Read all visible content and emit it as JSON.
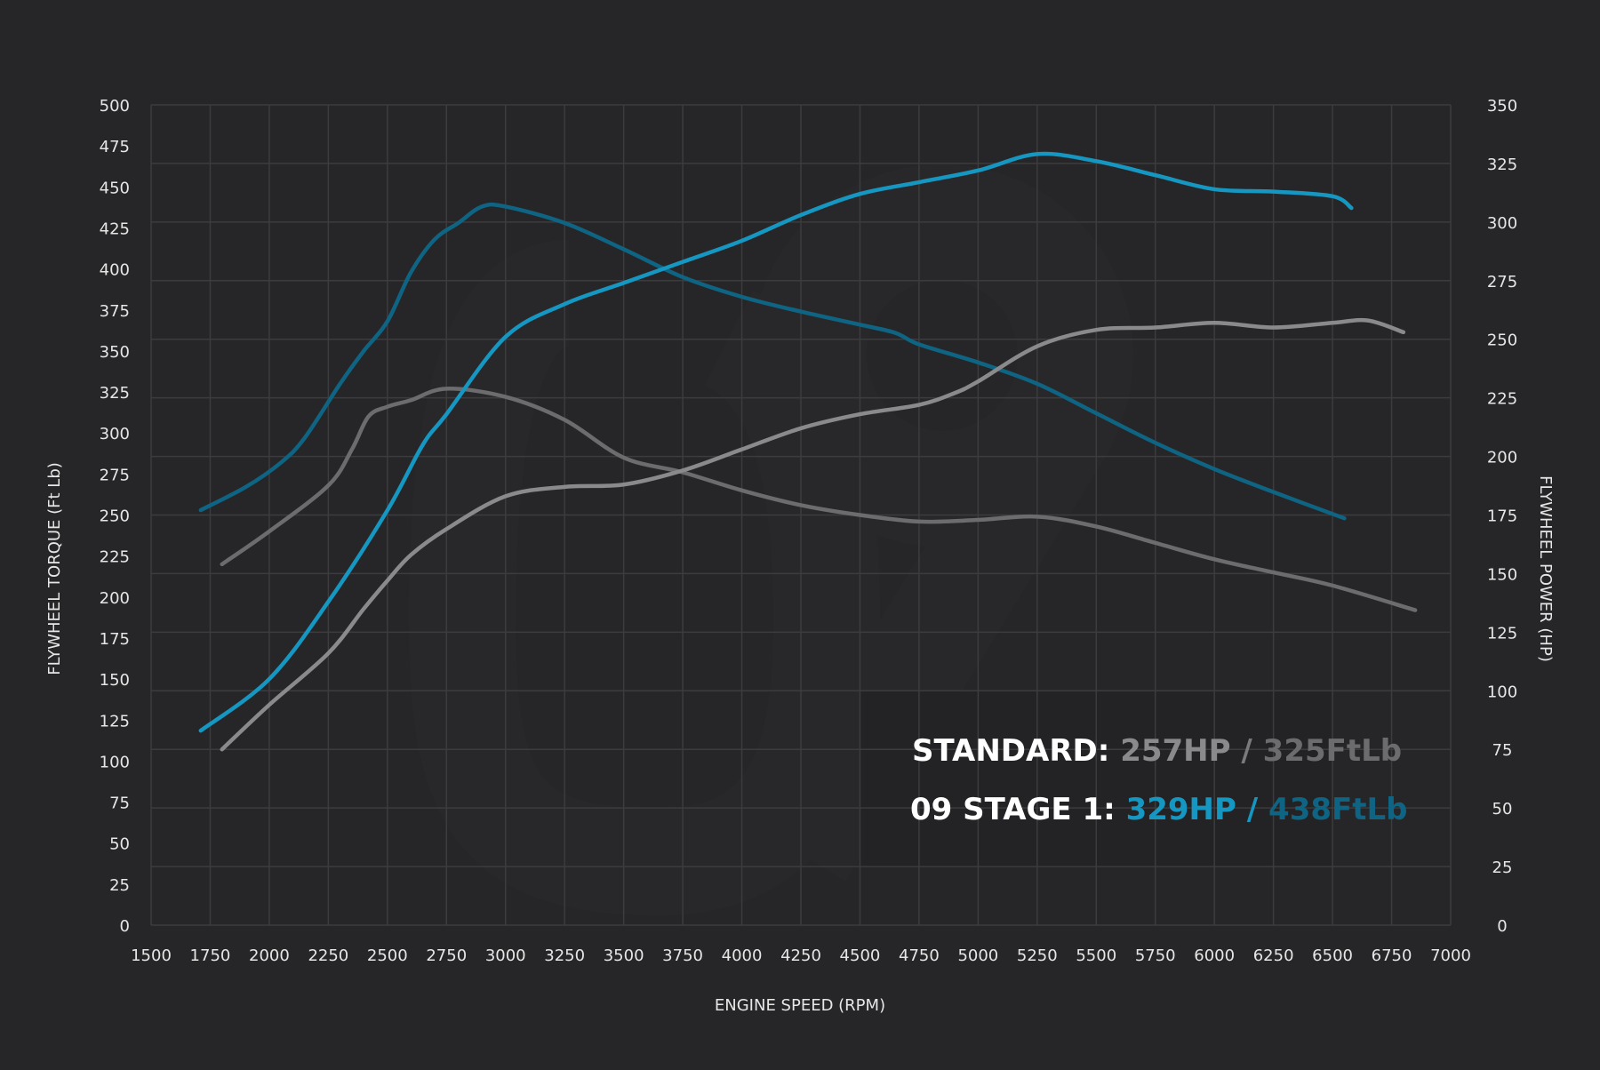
{
  "chart_data": {
    "type": "line",
    "xlabel": "ENGINE SPEED (RPM)",
    "ylabel_left": "FLYWHEEL TORQUE (Ft Lb)",
    "ylabel_right": "FLYWHEEL POWER (HP)",
    "xlim": [
      1500,
      7000
    ],
    "ylim_left": [
      0,
      500
    ],
    "ylim_right": [
      0,
      350
    ],
    "grid": true,
    "x_ticks": [
      1500,
      1750,
      2000,
      2250,
      2500,
      2750,
      3000,
      3250,
      3500,
      3750,
      4000,
      4250,
      4500,
      4750,
      5000,
      5250,
      5500,
      5750,
      6000,
      6250,
      6500,
      6750,
      7000
    ],
    "y_ticks_left": [
      0,
      25,
      50,
      75,
      100,
      125,
      150,
      175,
      200,
      225,
      250,
      275,
      300,
      325,
      350,
      375,
      400,
      425,
      450,
      475,
      500
    ],
    "y_ticks_right": [
      0,
      25,
      50,
      75,
      100,
      125,
      150,
      175,
      200,
      225,
      250,
      275,
      300,
      325,
      350
    ],
    "series": [
      {
        "axis": "left",
        "color": "#0e6482",
        "points": [
          [
            1710,
            253
          ],
          [
            1900,
            267
          ],
          [
            2050,
            282
          ],
          [
            2150,
            297
          ],
          [
            2300,
            330
          ],
          [
            2400,
            350
          ],
          [
            2500,
            368
          ],
          [
            2600,
            398
          ],
          [
            2700,
            418
          ],
          [
            2800,
            428
          ],
          [
            2900,
            438
          ],
          [
            3000,
            438
          ],
          [
            3250,
            428
          ],
          [
            3500,
            412
          ],
          [
            3750,
            395
          ],
          [
            4000,
            383
          ],
          [
            4250,
            374
          ],
          [
            4500,
            366
          ],
          [
            4650,
            361
          ],
          [
            4750,
            354
          ],
          [
            5000,
            343
          ],
          [
            5250,
            330
          ],
          [
            5500,
            312
          ],
          [
            5750,
            294
          ],
          [
            6000,
            278
          ],
          [
            6250,
            264
          ],
          [
            6550,
            248
          ]
        ]
      },
      {
        "axis": "left",
        "color": "#6c6c6e",
        "points": [
          [
            1800,
            220
          ],
          [
            2000,
            240
          ],
          [
            2250,
            268
          ],
          [
            2350,
            290
          ],
          [
            2420,
            310
          ],
          [
            2500,
            316
          ],
          [
            2600,
            320
          ],
          [
            2750,
            327
          ],
          [
            3000,
            322
          ],
          [
            3250,
            308
          ],
          [
            3500,
            285
          ],
          [
            3750,
            276
          ],
          [
            4000,
            265
          ],
          [
            4250,
            256
          ],
          [
            4500,
            250
          ],
          [
            4750,
            246
          ],
          [
            5000,
            247
          ],
          [
            5250,
            249
          ],
          [
            5500,
            243
          ],
          [
            5750,
            233
          ],
          [
            6000,
            223
          ],
          [
            6250,
            215
          ],
          [
            6500,
            207
          ],
          [
            6850,
            192
          ]
        ]
      },
      {
        "axis": "right",
        "color": "#1597c2",
        "points": [
          [
            1710,
            83
          ],
          [
            2000,
            105
          ],
          [
            2250,
            138
          ],
          [
            2500,
            177
          ],
          [
            2650,
            205
          ],
          [
            2750,
            218
          ],
          [
            3000,
            251
          ],
          [
            3250,
            265
          ],
          [
            3500,
            274
          ],
          [
            3750,
            283
          ],
          [
            4000,
            292
          ],
          [
            4250,
            303
          ],
          [
            4500,
            312
          ],
          [
            4750,
            317
          ],
          [
            5000,
            322
          ],
          [
            5250,
            329
          ],
          [
            5500,
            326
          ],
          [
            5750,
            320
          ],
          [
            6000,
            314
          ],
          [
            6250,
            313
          ],
          [
            6500,
            311
          ],
          [
            6580,
            306
          ]
        ]
      },
      {
        "axis": "right",
        "color": "#8a8a8c",
        "points": [
          [
            1800,
            75
          ],
          [
            2000,
            94
          ],
          [
            2250,
            116
          ],
          [
            2400,
            135
          ],
          [
            2500,
            147
          ],
          [
            2600,
            158
          ],
          [
            2750,
            169
          ],
          [
            3000,
            183
          ],
          [
            3250,
            187
          ],
          [
            3500,
            188
          ],
          [
            3750,
            194
          ],
          [
            4000,
            203
          ],
          [
            4250,
            212
          ],
          [
            4500,
            218
          ],
          [
            4750,
            222
          ],
          [
            4900,
            227
          ],
          [
            5000,
            232
          ],
          [
            5250,
            247
          ],
          [
            5500,
            254
          ],
          [
            5750,
            255
          ],
          [
            6000,
            257
          ],
          [
            6250,
            255
          ],
          [
            6500,
            257
          ],
          [
            6650,
            258
          ],
          [
            6800,
            253
          ]
        ]
      }
    ],
    "legend": {
      "standard": {
        "label": "STANDARD:",
        "hp": "257HP",
        "sep": "/",
        "torque": "325FtLb",
        "hp_color": "#8a8a8c",
        "torque_color": "#6c6c6e"
      },
      "stage1": {
        "label": "09 STAGE 1:",
        "hp": "329HP",
        "sep": "/",
        "torque": "438FtLb",
        "hp_color": "#1597c2",
        "torque_color": "#0e6482"
      }
    }
  }
}
